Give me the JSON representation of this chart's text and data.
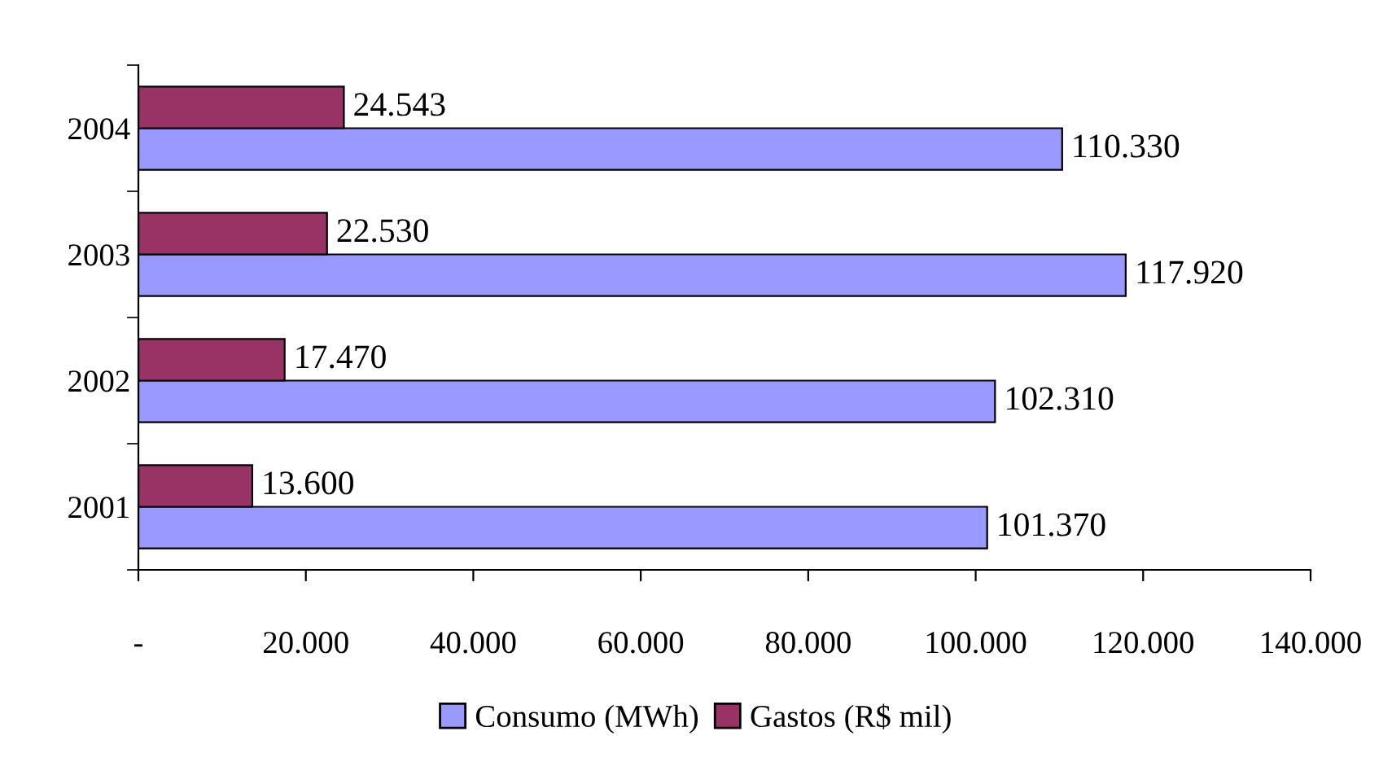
{
  "chart_data": {
    "type": "bar",
    "orientation": "horizontal",
    "categories": [
      "2004",
      "2003",
      "2002",
      "2001"
    ],
    "series": [
      {
        "name": "Consumo (MWh)",
        "color": "#9999ff",
        "values": [
          110330,
          117920,
          102310,
          101370
        ],
        "value_labels": [
          "110.330",
          "117.920",
          "102.310",
          "101.370"
        ]
      },
      {
        "name": "Gastos (R$ mil)",
        "color": "#993366",
        "values": [
          24543,
          22530,
          17470,
          13600
        ],
        "value_labels": [
          "24.543",
          "22.530",
          "17.470",
          "13.600"
        ]
      }
    ],
    "xlim": [
      0,
      140000
    ],
    "xticks": [
      {
        "value": 0,
        "label": "-"
      },
      {
        "value": 20000,
        "label": "20.000"
      },
      {
        "value": 40000,
        "label": "40.000"
      },
      {
        "value": 60000,
        "label": "60.000"
      },
      {
        "value": 80000,
        "label": "80.000"
      },
      {
        "value": 100000,
        "label": "100.000"
      },
      {
        "value": 120000,
        "label": "120.000"
      },
      {
        "value": 140000,
        "label": "140.000"
      }
    ],
    "grid": false,
    "legend": "bottom"
  }
}
